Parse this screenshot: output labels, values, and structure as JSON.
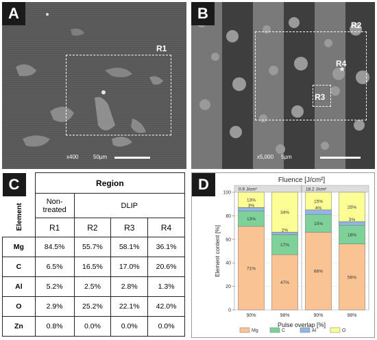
{
  "panels": {
    "a": {
      "label": "A",
      "roi": "R1",
      "mag": "x400",
      "scale": "50µm"
    },
    "b": {
      "label": "B",
      "roi_r2": "R2",
      "roi_r3": "R3",
      "roi_r4": "R4",
      "asterisk": "*",
      "mag": "x5,000",
      "scale": "5µm"
    },
    "c": {
      "label": "C",
      "header_region": "Region",
      "header_element": "Element",
      "group_nontreated": "Non-treated",
      "group_dlip": "DLIP",
      "columns": [
        "R1",
        "R2",
        "R3",
        "R4"
      ],
      "rows": [
        {
          "element": "Mg",
          "values": [
            "84.5%",
            "55.7%",
            "58.1%",
            "36.1%"
          ]
        },
        {
          "element": "C",
          "values": [
            "6.5%",
            "16.5%",
            "17.0%",
            "20.6%"
          ]
        },
        {
          "element": "Al",
          "values": [
            "5.2%",
            "2.5%",
            "2.8%",
            "1.3%"
          ]
        },
        {
          "element": "O",
          "values": [
            "2.9%",
            "25.2%",
            "22.1%",
            "42.0%"
          ]
        },
        {
          "element": "Zn",
          "values": [
            "0.8%",
            "0.0%",
            "0.0%",
            "0.0%"
          ]
        }
      ]
    },
    "d": {
      "label": "D"
    }
  },
  "chart_data": {
    "type": "bar",
    "stacked": true,
    "title": "Fluence [J/cm²]",
    "facets": [
      "0.9 J/cm²",
      "18.2 J/cm²"
    ],
    "categories": [
      "90%",
      "98%",
      "90%",
      "98%"
    ],
    "xlabel": "Pulse overlap [%]",
    "ylabel": "Element content [%]",
    "ylim": [
      0,
      100
    ],
    "yticks": [
      0,
      20,
      40,
      60,
      80,
      100
    ],
    "series": [
      {
        "name": "Mg",
        "color": "#f9c394",
        "values": [
          71,
          47,
          66,
          56
        ],
        "labels": [
          "71%",
          "47%",
          "66%",
          "56%"
        ]
      },
      {
        "name": "C",
        "color": "#7fd19a",
        "values": [
          13,
          17,
          15,
          16
        ],
        "labels": [
          "13%",
          "17%",
          "15%",
          "16%"
        ]
      },
      {
        "name": "Al",
        "color": "#8fb6e6",
        "values": [
          3,
          2,
          4,
          3
        ],
        "labels": [
          "3%",
          "2%",
          "4%",
          "3%"
        ]
      },
      {
        "name": "O",
        "color": "#fdfd96",
        "values": [
          13,
          34,
          15,
          25
        ],
        "labels": [
          "13%",
          "34%",
          "15%",
          "25%"
        ]
      }
    ],
    "legend": "bottom",
    "grid": true
  }
}
